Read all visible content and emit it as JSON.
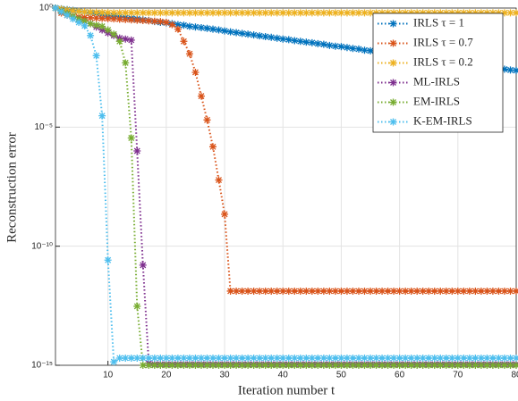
{
  "chart_data": {
    "type": "line",
    "xlabel": "Iteration number t",
    "ylabel": "Reconstruction error",
    "xlim": [
      1,
      80
    ],
    "xticks": [
      10,
      20,
      30,
      40,
      50,
      60,
      70,
      80
    ],
    "ylim": [
      1e-15,
      1
    ],
    "yticks": [
      {
        "value": 1,
        "label": "10⁰"
      },
      {
        "value": 1e-05,
        "label": "10⁻⁵"
      },
      {
        "value": 1e-10,
        "label": "10⁻¹⁰"
      },
      {
        "value": 1e-15,
        "label": "10⁻¹⁵"
      }
    ],
    "log_y": true,
    "grid": true,
    "legend": "upper right",
    "x": [
      1,
      2,
      3,
      4,
      5,
      6,
      7,
      8,
      9,
      10,
      11,
      12,
      13,
      14,
      15,
      16,
      17,
      18,
      19,
      20,
      21,
      22,
      23,
      24,
      25,
      26,
      27,
      28,
      29,
      30,
      31,
      32,
      33,
      34,
      35,
      36,
      37,
      38,
      39,
      40,
      41,
      42,
      43,
      44,
      45,
      46,
      47,
      48,
      49,
      50,
      51,
      52,
      53,
      54,
      55,
      56,
      57,
      58,
      59,
      60,
      61,
      62,
      63,
      64,
      65,
      66,
      67,
      68,
      69,
      70,
      71,
      72,
      73,
      74,
      75,
      76,
      77,
      78,
      79,
      80
    ],
    "series": [
      {
        "name": "IRLS τ = 1",
        "color": "#0072bd",
        "values": [
          1,
          0.93,
          0.86,
          0.8,
          0.74,
          0.68,
          0.63,
          0.59,
          0.54,
          0.5,
          0.47,
          0.43,
          0.4,
          0.37,
          0.35,
          0.32,
          0.3,
          0.27,
          0.25,
          0.24,
          0.22,
          0.2,
          0.19,
          0.17,
          0.16,
          0.15,
          0.14,
          0.13,
          0.12,
          0.11,
          0.1,
          0.093,
          0.086,
          0.08,
          0.074,
          0.068,
          0.063,
          0.059,
          0.054,
          0.05,
          0.047,
          0.043,
          0.04,
          0.037,
          0.035,
          0.032,
          0.03,
          0.027,
          0.025,
          0.024,
          0.022,
          0.02,
          0.019,
          0.017,
          0.016,
          0.015,
          0.014,
          0.013,
          0.012,
          0.011,
          0.01,
          0.0093,
          0.0086,
          0.008,
          0.0074,
          0.0068,
          0.0063,
          0.0059,
          0.0054,
          0.005,
          0.0047,
          0.0043,
          0.004,
          0.0037,
          0.0035,
          0.0032,
          0.003,
          0.0027,
          0.0025,
          0.0024
        ]
      },
      {
        "name": "IRLS τ = 0.7",
        "color": "#d95319",
        "values": [
          1,
          0.62,
          0.5,
          0.45,
          0.42,
          0.4,
          0.39,
          0.38,
          0.37,
          0.36,
          0.35,
          0.34,
          0.33,
          0.32,
          0.31,
          0.3,
          0.29,
          0.28,
          0.27,
          0.25,
          0.2,
          0.13,
          0.04,
          0.012,
          0.002,
          0.0002,
          2e-05,
          1.5e-06,
          6e-08,
          2.2e-09,
          1.3e-12,
          1.3e-12,
          1.3e-12,
          1.3e-12,
          1.3e-12,
          1.3e-12,
          1.3e-12,
          1.3e-12,
          1.3e-12,
          1.3e-12,
          1.3e-12,
          1.3e-12,
          1.3e-12,
          1.3e-12,
          1.3e-12,
          1.3e-12,
          1.3e-12,
          1.3e-12,
          1.3e-12,
          1.3e-12,
          1.3e-12,
          1.3e-12,
          1.3e-12,
          1.3e-12,
          1.3e-12,
          1.3e-12,
          1.3e-12,
          1.3e-12,
          1.3e-12,
          1.3e-12,
          1.3e-12,
          1.3e-12,
          1.3e-12,
          1.3e-12,
          1.3e-12,
          1.3e-12,
          1.3e-12,
          1.3e-12,
          1.3e-12,
          1.3e-12,
          1.3e-12,
          1.3e-12,
          1.3e-12,
          1.3e-12,
          1.3e-12,
          1.3e-12,
          1.3e-12,
          1.3e-12,
          1.3e-12,
          1.3e-12
        ]
      },
      {
        "name": "IRLS τ = 0.2",
        "color": "#edb120",
        "values": [
          1,
          0.9,
          0.82,
          0.76,
          0.72,
          0.69,
          0.67,
          0.66,
          0.65,
          0.64,
          0.63,
          0.63,
          0.63,
          0.63,
          0.63,
          0.63,
          0.63,
          0.63,
          0.63,
          0.63,
          0.63,
          0.63,
          0.63,
          0.63,
          0.63,
          0.63,
          0.63,
          0.63,
          0.63,
          0.63,
          0.63,
          0.63,
          0.63,
          0.63,
          0.63,
          0.63,
          0.63,
          0.63,
          0.63,
          0.63,
          0.63,
          0.63,
          0.63,
          0.63,
          0.63,
          0.63,
          0.63,
          0.63,
          0.63,
          0.63,
          0.63,
          0.63,
          0.63,
          0.63,
          0.63,
          0.63,
          0.63,
          0.63,
          0.63,
          0.63,
          0.63,
          0.63,
          0.63,
          0.63,
          0.63,
          0.63,
          0.63,
          0.63,
          0.63,
          0.63,
          0.63,
          0.63,
          0.63,
          0.63,
          0.63,
          0.63,
          0.63,
          0.63,
          0.63,
          0.63
        ]
      },
      {
        "name": "ML-IRLS",
        "color": "#7e2f8e",
        "values": [
          1,
          0.75,
          0.6,
          0.45,
          0.35,
          0.28,
          0.22,
          0.16,
          0.12,
          0.09,
          0.07,
          0.055,
          0.05,
          0.045,
          1e-06,
          1.6e-11,
          1.2e-15,
          1.1e-15,
          1.1e-15,
          1.1e-15,
          1.1e-15,
          1.1e-15,
          1.1e-15,
          1.1e-15,
          1.1e-15,
          1.1e-15,
          1.1e-15,
          1.1e-15,
          1.1e-15,
          1.1e-15,
          1.1e-15,
          1.1e-15,
          1.1e-15,
          1.1e-15,
          1.1e-15,
          1.1e-15,
          1.1e-15,
          1.1e-15,
          1.1e-15,
          1.1e-15,
          1.1e-15,
          1.1e-15,
          1.1e-15,
          1.1e-15,
          1.1e-15,
          1.1e-15,
          1.1e-15,
          1.1e-15,
          1.1e-15,
          1.1e-15,
          1.1e-15,
          1.1e-15,
          1.1e-15,
          1.1e-15,
          1.1e-15,
          1.1e-15,
          1.1e-15,
          1.1e-15,
          1.1e-15,
          1.1e-15,
          1.1e-15,
          1.1e-15,
          1.1e-15,
          1.1e-15,
          1.1e-15,
          1.1e-15,
          1.1e-15,
          1.1e-15,
          1.1e-15,
          1.1e-15,
          1.1e-15,
          1.1e-15,
          1.1e-15,
          1.1e-15,
          1.1e-15,
          1.1e-15,
          1.1e-15,
          1.1e-15,
          1.1e-15,
          1.1e-15
        ]
      },
      {
        "name": "EM-IRLS",
        "color": "#77ac30",
        "values": [
          1,
          0.75,
          0.6,
          0.45,
          0.35,
          0.28,
          0.22,
          0.19,
          0.17,
          0.12,
          0.08,
          0.04,
          0.005,
          3.5e-06,
          3e-13,
          1e-15,
          1e-15,
          1e-15,
          1e-15,
          1e-15,
          1e-15,
          1e-15,
          1e-15,
          1e-15,
          1e-15,
          1e-15,
          1e-15,
          1e-15,
          1e-15,
          1e-15,
          1e-15,
          1e-15,
          1e-15,
          1e-15,
          1e-15,
          1e-15,
          1e-15,
          1e-15,
          1e-15,
          1e-15,
          1e-15,
          1e-15,
          1e-15,
          1e-15,
          1e-15,
          1e-15,
          1e-15,
          1e-15,
          1e-15,
          1e-15,
          1e-15,
          1e-15,
          1e-15,
          1e-15,
          1e-15,
          1e-15,
          1e-15,
          1e-15,
          1e-15,
          1e-15,
          1e-15,
          1e-15,
          1e-15,
          1e-15,
          1e-15,
          1e-15,
          1e-15,
          1e-15,
          1e-15,
          1e-15,
          1e-15,
          1e-15,
          1e-15,
          1e-15,
          1e-15,
          1e-15,
          1e-15,
          1e-15,
          1e-15,
          1e-15
        ]
      },
      {
        "name": "K-EM-IRLS",
        "color": "#4dbeee",
        "values": [
          1,
          0.7,
          0.5,
          0.35,
          0.25,
          0.18,
          0.07,
          0.01,
          3e-05,
          2.6e-11,
          1.4e-15,
          2e-15,
          2e-15,
          2e-15,
          2e-15,
          2e-15,
          2e-15,
          2e-15,
          2e-15,
          2e-15,
          2e-15,
          2e-15,
          2e-15,
          2e-15,
          2e-15,
          2e-15,
          2e-15,
          2e-15,
          2e-15,
          2e-15,
          2e-15,
          2e-15,
          2e-15,
          2e-15,
          2e-15,
          2e-15,
          2e-15,
          2e-15,
          2e-15,
          2e-15,
          2e-15,
          2e-15,
          2e-15,
          2e-15,
          2e-15,
          2e-15,
          2e-15,
          2e-15,
          2e-15,
          2e-15,
          2e-15,
          2e-15,
          2e-15,
          2e-15,
          2e-15,
          2e-15,
          2e-15,
          2e-15,
          2e-15,
          2e-15,
          2e-15,
          2e-15,
          2e-15,
          2e-15,
          2e-15,
          2e-15,
          2e-15,
          2e-15,
          2e-15,
          2e-15,
          2e-15,
          2e-15,
          2e-15,
          2e-15,
          2e-15,
          2e-15,
          2e-15,
          2e-15,
          2e-15,
          2e-15
        ]
      }
    ]
  }
}
